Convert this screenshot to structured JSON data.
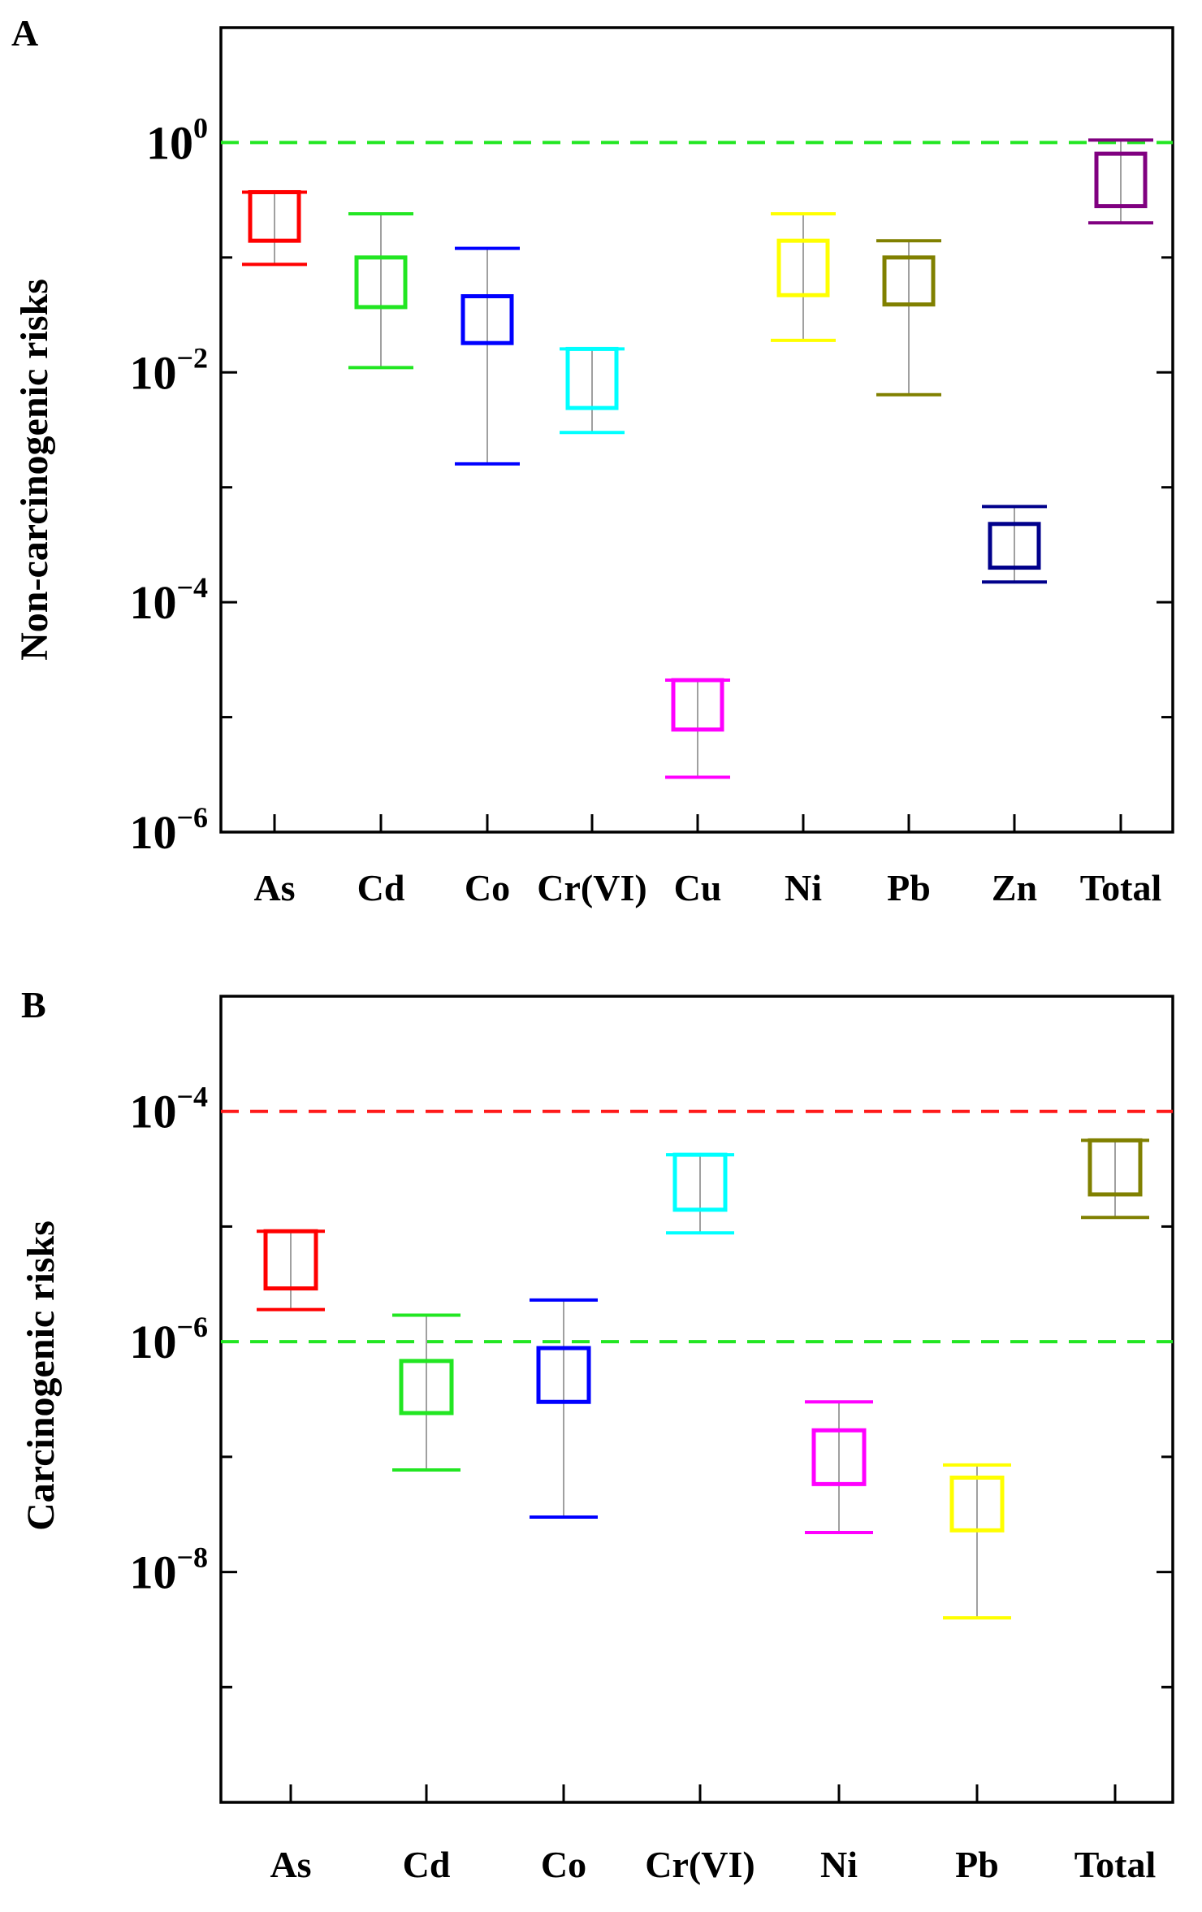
{
  "chart_data": [
    {
      "panel_label": "A",
      "type": "box",
      "ylabel": "Non-carcinogenic risks",
      "yscale": "log",
      "ylim_exp": [
        -6,
        1
      ],
      "major_tick_exps": [
        0,
        -2,
        -4,
        -6
      ],
      "tick_base": "10",
      "tick_exponents": [
        "0",
        "−2",
        "−4",
        "−6"
      ],
      "grid": false,
      "reference_lines": [
        {
          "value": 1,
          "color": "#22e622",
          "style": "dashed"
        }
      ],
      "categories": [
        "As",
        "Cd",
        "Co",
        "Cr(VI)",
        "Cu",
        "Ni",
        "Pb",
        "Zn",
        "Total"
      ],
      "series": [
        {
          "category": "As",
          "color": "#ff0000",
          "min": 0.087,
          "q1": 0.14,
          "q3": 0.37,
          "max": 0.37
        },
        {
          "category": "Cd",
          "color": "#22e622",
          "min": 0.011,
          "q1": 0.037,
          "q3": 0.1,
          "max": 0.24
        },
        {
          "category": "Co",
          "color": "#0000ff",
          "min": 0.0016,
          "q1": 0.018,
          "q3": 0.046,
          "max": 0.12
        },
        {
          "category": "Cr(VI)",
          "color": "#00ffff",
          "min": 0.003,
          "q1": 0.0049,
          "q3": 0.016,
          "max": 0.016
        },
        {
          "category": "Cu",
          "color": "#ff00ff",
          "min": 3e-06,
          "q1": 7.8e-06,
          "q3": 2.1e-05,
          "max": 2.1e-05
        },
        {
          "category": "Ni",
          "color": "#ffff00",
          "min": 0.019,
          "q1": 0.047,
          "q3": 0.14,
          "max": 0.24
        },
        {
          "category": "Pb",
          "color": "#808000",
          "min": 0.0064,
          "q1": 0.039,
          "q3": 0.1,
          "max": 0.14
        },
        {
          "category": "Zn",
          "color": "#00008b",
          "min": 0.00015,
          "q1": 0.0002,
          "q3": 0.00048,
          "max": 0.00068
        },
        {
          "category": "Total",
          "color": "#800080",
          "min": 0.2,
          "q1": 0.28,
          "q3": 0.8,
          "max": 1.05
        }
      ]
    },
    {
      "panel_label": "B",
      "type": "box",
      "ylabel": "Carcinogenic risks",
      "yscale": "log",
      "ylim_exp": [
        -10,
        -3
      ],
      "major_tick_exps": [
        -4,
        -6,
        -8
      ],
      "tick_base": "10",
      "tick_exponents": [
        "−4",
        "−6",
        "−8"
      ],
      "grid": false,
      "reference_lines": [
        {
          "value": 0.0001,
          "color": "#ff1a1a",
          "style": "dashed"
        },
        {
          "value": 1e-06,
          "color": "#22e622",
          "style": "dashed"
        }
      ],
      "categories": [
        "As",
        "Cd",
        "Co",
        "Cr(VI)",
        "Ni",
        "Pb",
        "Total"
      ],
      "series": [
        {
          "category": "As",
          "color": "#ff0000",
          "min": 1.9e-06,
          "q1": 2.9e-06,
          "q3": 9.1e-06,
          "max": 9.1e-06
        },
        {
          "category": "Cd",
          "color": "#22e622",
          "min": 7.7e-08,
          "q1": 2.4e-07,
          "q3": 6.8e-07,
          "max": 1.7e-06
        },
        {
          "category": "Co",
          "color": "#0000ff",
          "min": 3e-08,
          "q1": 3e-07,
          "q3": 8.8e-07,
          "max": 2.3e-06
        },
        {
          "category": "Cr(VI)",
          "color": "#00ffff",
          "min": 8.8e-06,
          "q1": 1.4e-05,
          "q3": 4.2e-05,
          "max": 4.2e-05
        },
        {
          "category": "Ni",
          "color": "#ff00ff",
          "min": 2.2e-08,
          "q1": 5.8e-08,
          "q3": 1.7e-07,
          "max": 3e-07
        },
        {
          "category": "Pb",
          "color": "#ffff00",
          "min": 4e-09,
          "q1": 2.3e-08,
          "q3": 6.6e-08,
          "max": 8.5e-08
        },
        {
          "category": "Total",
          "color": "#808000",
          "min": 1.2e-05,
          "q1": 1.9e-05,
          "q3": 5.6e-05,
          "max": 5.6e-05
        }
      ]
    }
  ]
}
